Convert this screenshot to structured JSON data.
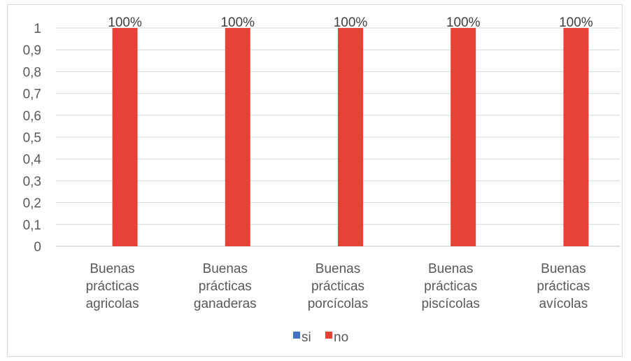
{
  "chart_data": {
    "type": "bar",
    "categories": [
      [
        "Buenas",
        "prácticas",
        "agricolas"
      ],
      [
        "Buenas",
        "prácticas",
        "ganaderas"
      ],
      [
        "Buenas",
        "prácticas",
        "porcícolas"
      ],
      [
        "Buenas",
        "prácticas",
        "piscícolas"
      ],
      [
        "Buenas",
        "prácticas",
        "avícolas"
      ]
    ],
    "series": [
      {
        "name": "si",
        "color": "#4472C4",
        "values": [
          0,
          0,
          0,
          0,
          0
        ]
      },
      {
        "name": "no",
        "color": "#E84136",
        "values": [
          1,
          1,
          1,
          1,
          1
        ],
        "data_labels": [
          "100%",
          "100%",
          "100%",
          "100%",
          "100%"
        ]
      }
    ],
    "ylim": [
      0,
      1
    ],
    "yticks": [
      "0",
      "0,1",
      "0,2",
      "0,3",
      "0,4",
      "0,5",
      "0,6",
      "0,7",
      "0,8",
      "0,9",
      "1"
    ],
    "grid": true,
    "legend": "bottom"
  }
}
